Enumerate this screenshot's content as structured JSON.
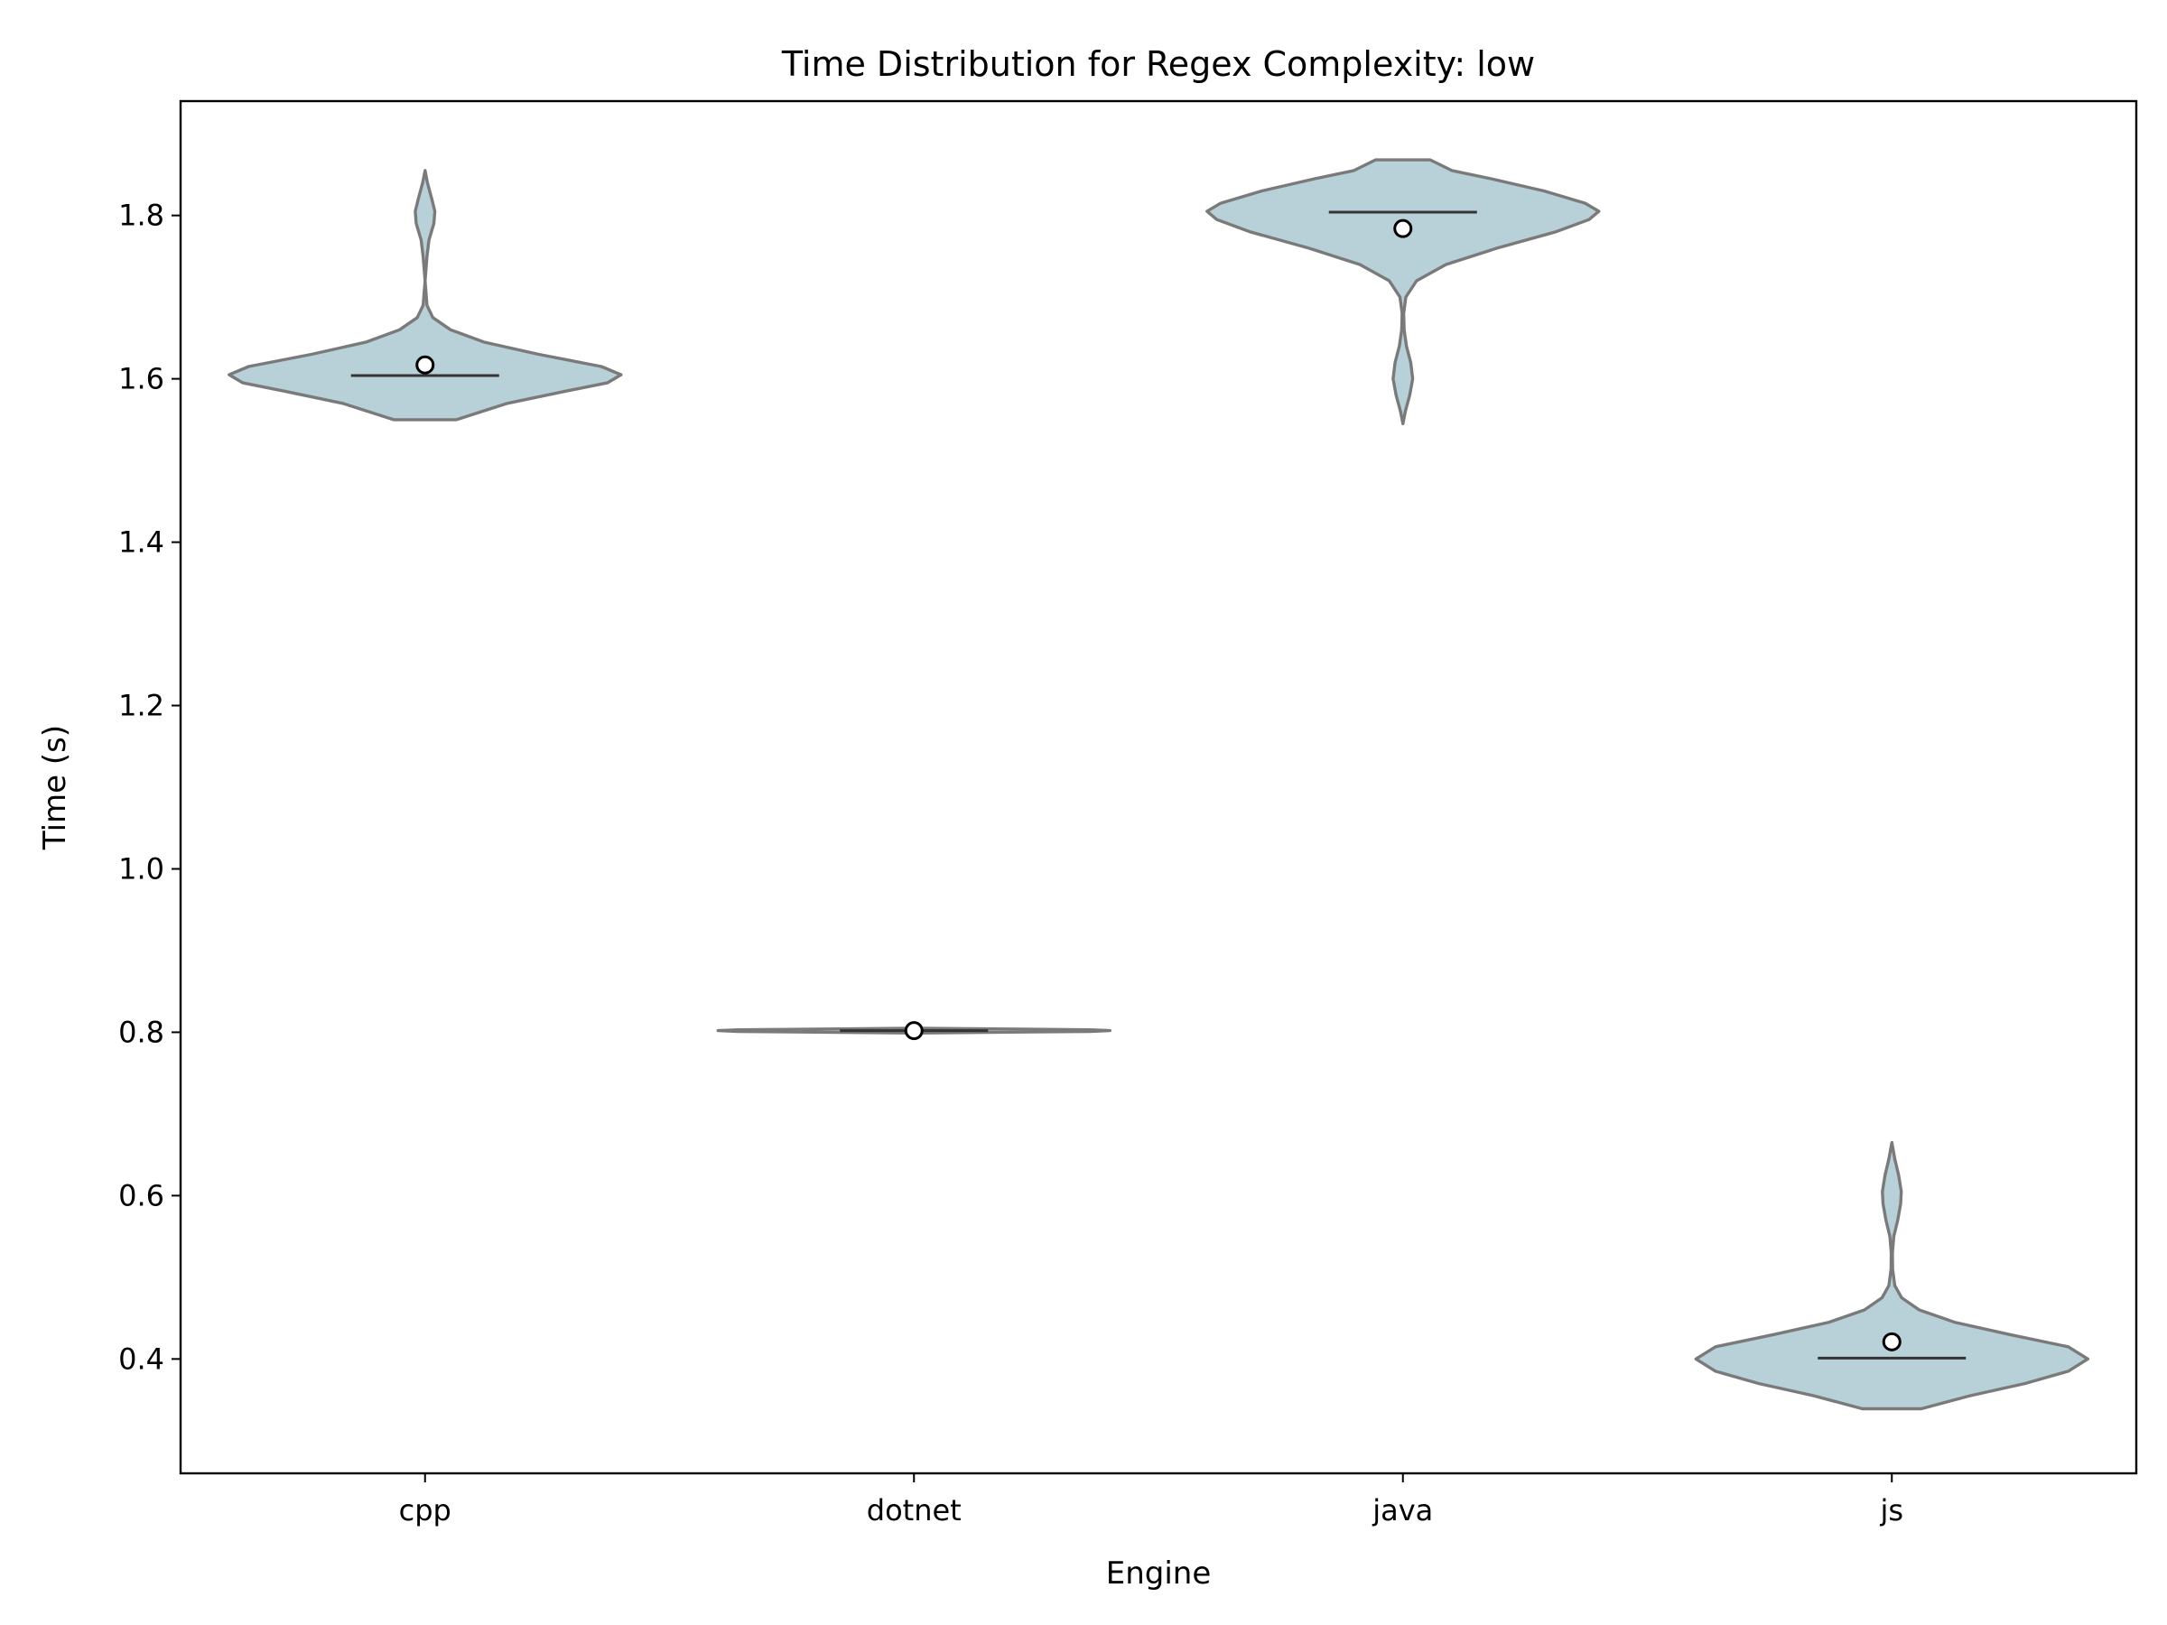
{
  "chart_data": {
    "type": "violin",
    "title": "Time Distribution for Regex Complexity: low",
    "xlabel": "Engine",
    "ylabel": "Time (s)",
    "categories": [
      "cpp",
      "dotnet",
      "java",
      "js"
    ],
    "ylim": [
      0.26,
      1.94
    ],
    "yticks": [
      0.4,
      0.6,
      0.8,
      1.0,
      1.2,
      1.4,
      1.6,
      1.8
    ],
    "ytick_labels": [
      "0.4",
      "0.6",
      "0.8",
      "1.0",
      "1.2",
      "1.4",
      "1.6",
      "1.8"
    ],
    "grid": false,
    "series": [
      {
        "category": "cpp",
        "median": 1.604,
        "mean": 1.617,
        "min": 1.55,
        "max": 1.855,
        "density_profile": [
          [
            1.55,
            0.16
          ],
          [
            1.57,
            0.42
          ],
          [
            1.585,
            0.72
          ],
          [
            1.595,
            0.93
          ],
          [
            1.605,
            1.0
          ],
          [
            1.615,
            0.9
          ],
          [
            1.63,
            0.58
          ],
          [
            1.645,
            0.3
          ],
          [
            1.66,
            0.13
          ],
          [
            1.675,
            0.04
          ],
          [
            1.69,
            0.01
          ],
          [
            1.72,
            0.0
          ],
          [
            1.75,
            0.01
          ],
          [
            1.77,
            0.02
          ],
          [
            1.79,
            0.045
          ],
          [
            1.805,
            0.05
          ],
          [
            1.82,
            0.035
          ],
          [
            1.84,
            0.012
          ],
          [
            1.855,
            0.0
          ]
        ]
      },
      {
        "category": "dotnet",
        "median": 0.802,
        "mean": 0.802,
        "min": 0.799,
        "max": 0.805,
        "density_profile": [
          [
            0.799,
            0.0
          ],
          [
            0.801,
            0.9
          ],
          [
            0.802,
            1.0
          ],
          [
            0.803,
            0.9
          ],
          [
            0.805,
            0.0
          ]
        ]
      },
      {
        "category": "java",
        "median": 1.804,
        "mean": 1.784,
        "min": 1.545,
        "max": 1.868,
        "density_profile": [
          [
            1.545,
            0.0
          ],
          [
            1.56,
            0.012
          ],
          [
            1.58,
            0.035
          ],
          [
            1.6,
            0.05
          ],
          [
            1.62,
            0.04
          ],
          [
            1.64,
            0.018
          ],
          [
            1.66,
            0.006
          ],
          [
            1.68,
            0.004
          ],
          [
            1.7,
            0.015
          ],
          [
            1.72,
            0.07
          ],
          [
            1.74,
            0.22
          ],
          [
            1.76,
            0.48
          ],
          [
            1.78,
            0.78
          ],
          [
            1.795,
            0.95
          ],
          [
            1.805,
            1.0
          ],
          [
            1.815,
            0.93
          ],
          [
            1.83,
            0.72
          ],
          [
            1.845,
            0.45
          ],
          [
            1.855,
            0.25
          ],
          [
            1.868,
            0.14
          ]
        ]
      },
      {
        "category": "js",
        "median": 0.401,
        "mean": 0.421,
        "min": 0.339,
        "max": 0.665,
        "density_profile": [
          [
            0.339,
            0.15
          ],
          [
            0.355,
            0.4
          ],
          [
            0.37,
            0.68
          ],
          [
            0.385,
            0.9
          ],
          [
            0.4,
            1.0
          ],
          [
            0.415,
            0.9
          ],
          [
            0.43,
            0.6
          ],
          [
            0.445,
            0.32
          ],
          [
            0.46,
            0.14
          ],
          [
            0.475,
            0.05
          ],
          [
            0.49,
            0.015
          ],
          [
            0.51,
            0.004
          ],
          [
            0.53,
            0.003
          ],
          [
            0.55,
            0.01
          ],
          [
            0.57,
            0.03
          ],
          [
            0.59,
            0.045
          ],
          [
            0.605,
            0.048
          ],
          [
            0.625,
            0.035
          ],
          [
            0.645,
            0.015
          ],
          [
            0.665,
            0.0
          ]
        ]
      }
    ]
  },
  "colors": {
    "violin_fill": "#b8d0d8",
    "violin_edge": "#7a7a7a",
    "median_line": "#333333",
    "mean_marker_fill": "#ffffff",
    "mean_marker_edge": "#000000",
    "axes": "#000000"
  }
}
